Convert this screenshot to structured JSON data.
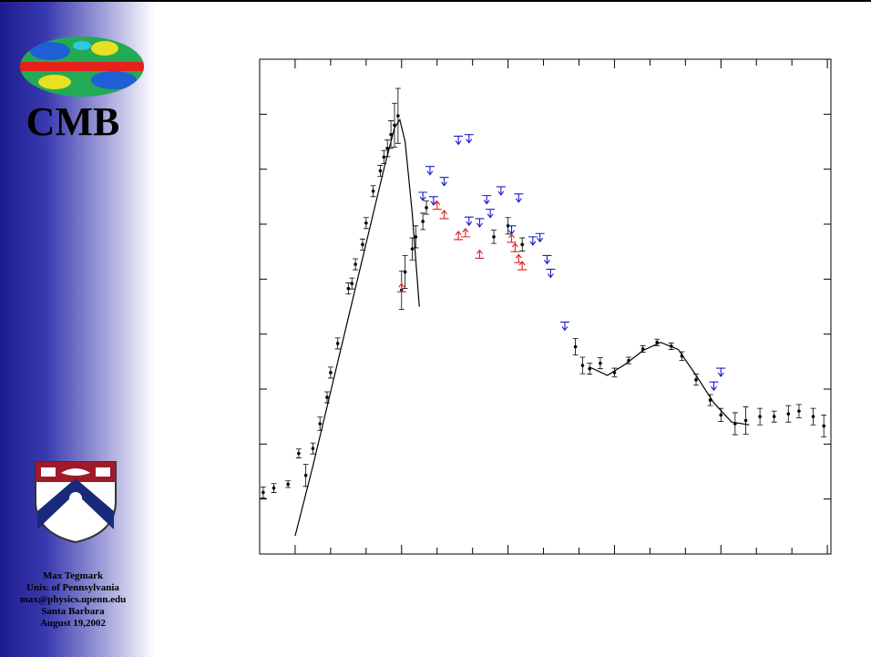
{
  "sidebar": {
    "title": "CMB",
    "author": "Max Tegmark",
    "affiliation": "Univ. of Pennsylvania",
    "email": "max@physics.upenn.edu",
    "location": "Santa Barbara",
    "date": "August 19,2002"
  },
  "chart_data": {
    "type": "scatter",
    "xlim": [
      -1,
      15.1
    ],
    "ylim": [
      -1,
      8
    ],
    "xticks": [
      0,
      1,
      2,
      3,
      4,
      5,
      6,
      7,
      8,
      9,
      10,
      11,
      12,
      13,
      14,
      15
    ],
    "yticks": [
      0,
      1,
      2,
      3,
      4,
      5,
      6,
      7
    ],
    "series": [
      {
        "color": "#000000",
        "marker": "errorbar",
        "x": [
          -0.9,
          -0.6,
          -0.2,
          0.1,
          0.3,
          0.5,
          0.7,
          0.9,
          1.0,
          1.2,
          1.5,
          1.6,
          1.7,
          1.9,
          2.0,
          2.2,
          2.4,
          2.5,
          2.6,
          2.7,
          2.8,
          2.9,
          3.0,
          3.1,
          3.3,
          3.4,
          3.6,
          3.7,
          5.6,
          6.0,
          6.4,
          7.9,
          8.1,
          8.3,
          8.6,
          9.0,
          9.4,
          9.8,
          10.2,
          10.6,
          10.9,
          11.3,
          11.7,
          12.0,
          12.4,
          12.7,
          13.1,
          13.5,
          13.9,
          14.2,
          14.6,
          14.9
        ],
        "values": [
          0.12,
          0.2,
          0.27,
          0.83,
          0.43,
          0.92,
          1.37,
          1.85,
          2.3,
          2.83,
          3.83,
          3.92,
          4.27,
          4.63,
          5.02,
          5.6,
          5.97,
          6.22,
          6.38,
          6.63,
          6.8,
          6.97,
          3.8,
          4.13,
          4.55,
          4.77,
          5.05,
          5.3,
          4.77,
          4.97,
          4.63,
          2.77,
          2.43,
          2.37,
          2.47,
          2.3,
          2.52,
          2.73,
          2.85,
          2.78,
          2.6,
          2.17,
          1.8,
          1.53,
          1.37,
          1.43,
          1.5,
          1.5,
          1.55,
          1.6,
          1.5,
          1.33
        ],
        "errors": [
          0.1,
          0.08,
          0.06,
          0.08,
          0.2,
          0.1,
          0.12,
          0.1,
          0.1,
          0.1,
          0.1,
          0.1,
          0.1,
          0.1,
          0.1,
          0.1,
          0.1,
          0.12,
          0.15,
          0.25,
          0.4,
          0.5,
          0.35,
          0.3,
          0.2,
          0.2,
          0.15,
          0.12,
          0.12,
          0.15,
          0.12,
          0.15,
          0.15,
          0.1,
          0.1,
          0.08,
          0.06,
          0.06,
          0.06,
          0.06,
          0.08,
          0.1,
          0.1,
          0.12,
          0.2,
          0.25,
          0.15,
          0.1,
          0.15,
          0.12,
          0.15,
          0.2
        ]
      },
      {
        "color": "#1a1acc",
        "marker": "upper-limit",
        "x": [
          3.8,
          4.6,
          4.9,
          4.2,
          3.6,
          3.9,
          5.4,
          5.8,
          6.3,
          4.9,
          5.2,
          5.5,
          6.1,
          6.7,
          6.9,
          7.1,
          7.2,
          7.6,
          11.8,
          12.0
        ],
        "values": [
          6.05,
          6.6,
          6.63,
          5.85,
          5.58,
          5.5,
          5.52,
          5.68,
          5.55,
          5.13,
          5.1,
          5.27,
          4.97,
          4.77,
          4.83,
          4.43,
          4.18,
          3.22,
          2.13,
          2.38
        ]
      },
      {
        "color": "#dd2222",
        "marker": "lower-limit",
        "x": [
          3.0,
          4.0,
          4.2,
          4.6,
          4.8,
          5.2,
          6.1,
          6.2,
          6.3,
          6.4
        ],
        "values": [
          3.77,
          5.27,
          5.1,
          4.72,
          4.77,
          4.38,
          4.67,
          4.5,
          4.3,
          4.17
        ]
      },
      {
        "color": "#000000",
        "marker": "line",
        "x": [
          0,
          0.5,
          1,
          1.5,
          2,
          2.5,
          2.8,
          2.95,
          3.1,
          3.3,
          3.5
        ],
        "values": [
          -0.67,
          0.6,
          1.95,
          3.3,
          4.65,
          6.0,
          6.75,
          6.9,
          6.5,
          5.2,
          3.5
        ]
      },
      {
        "color": "#000000",
        "marker": "line",
        "x": [
          8.3,
          8.8,
          9.3,
          9.8,
          10.3,
          10.8,
          11.3,
          11.8,
          12.3,
          12.8
        ],
        "values": [
          2.4,
          2.25,
          2.45,
          2.7,
          2.85,
          2.72,
          2.25,
          1.75,
          1.4,
          1.35
        ]
      }
    ]
  }
}
